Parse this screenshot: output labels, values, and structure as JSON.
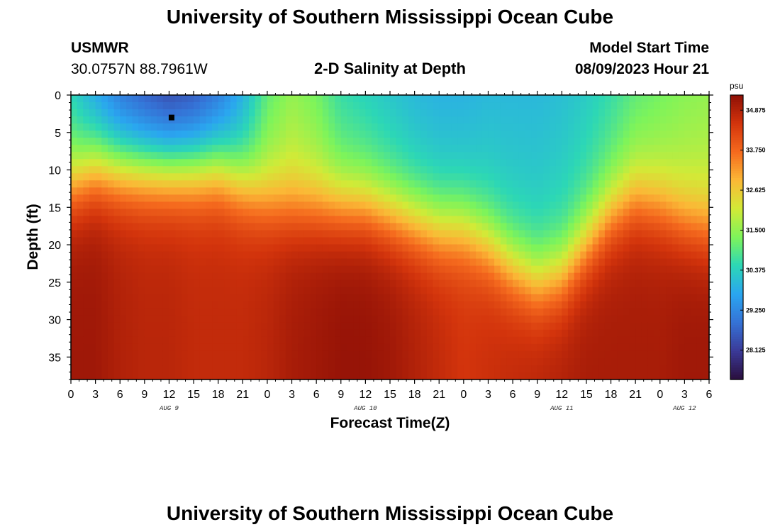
{
  "header": {
    "title": "University of Southern Mississippi Ocean Cube",
    "station": "USMWR",
    "coords": "30.0757N  88.7961W",
    "plot_title": "2-D Salinity at Depth",
    "model_start_label": "Model Start Time",
    "model_start_value": "08/09/2023 Hour 21"
  },
  "footer": {
    "title": "University of Southern Mississippi Ocean Cube"
  },
  "colors": {
    "colormap": [
      "#2a0e3d",
      "#3b3a98",
      "#3572d6",
      "#2aa6f0",
      "#2cd7b6",
      "#7ef45a",
      "#d2ea37",
      "#fbb836",
      "#f56a1e",
      "#d3340c",
      "#8e0f06"
    ]
  },
  "chart_data": {
    "type": "heatmap",
    "title": "2-D Salinity at Depth",
    "xlabel": "Forecast Time(Z)",
    "ylabel": "Depth (ft)",
    "x_hours_range": [
      0,
      78
    ],
    "y_depth_range": [
      0,
      38
    ],
    "x_tick_labels": [
      "0",
      "3",
      "6",
      "9",
      "12",
      "15",
      "18",
      "21",
      "0",
      "3",
      "6",
      "9",
      "12",
      "15",
      "18",
      "21",
      "0",
      "3",
      "6",
      "9",
      "12",
      "15",
      "18",
      "21",
      "0",
      "3",
      "6"
    ],
    "y_tick_labels": [
      "0",
      "5",
      "10",
      "15",
      "20",
      "25",
      "30",
      "35"
    ],
    "y_tick_values": [
      0,
      5,
      10,
      15,
      20,
      25,
      30,
      35
    ],
    "day_labels": [
      {
        "text": "AUG 9",
        "hour": 12
      },
      {
        "text": "AUG 10",
        "hour": 36
      },
      {
        "text": "AUG 11",
        "hour": 60
      },
      {
        "text": "AUG 12",
        "hour": 75
      }
    ],
    "colorbar": {
      "unit": "psu",
      "range": [
        27.3,
        35.3
      ],
      "tick_labels": [
        "34.875",
        "33.750",
        "32.625",
        "31.500",
        "30.375",
        "29.250",
        "28.125"
      ],
      "tick_values": [
        34.875,
        33.75,
        32.625,
        31.5,
        30.375,
        29.25,
        28.125
      ]
    },
    "marker": {
      "hour": 12.3,
      "depth": 3.0
    },
    "profile_columns": [
      {
        "hour": 0,
        "h": 12,
        "surf": 30.4,
        "deep": 35.1
      },
      {
        "hour": 3,
        "h": 10,
        "surf": 29.6,
        "deep": 35.1
      },
      {
        "hour": 6,
        "h": 10,
        "surf": 28.9,
        "deep": 34.9
      },
      {
        "hour": 9,
        "h": 10,
        "surf": 28.5,
        "deep": 34.8
      },
      {
        "hour": 12,
        "h": 10,
        "surf": 28.2,
        "deep": 34.8
      },
      {
        "hour": 15,
        "h": 10,
        "surf": 28.4,
        "deep": 34.7
      },
      {
        "hour": 18,
        "h": 10,
        "surf": 28.9,
        "deep": 34.7
      },
      {
        "hour": 21,
        "h": 12,
        "surf": 29.8,
        "deep": 34.7
      },
      {
        "hour": 24,
        "h": 14,
        "surf": 31.0,
        "deep": 34.8
      },
      {
        "hour": 27,
        "h": 15,
        "surf": 31.5,
        "deep": 35.0
      },
      {
        "hour": 30,
        "h": 15,
        "surf": 31.2,
        "deep": 35.1
      },
      {
        "hour": 33,
        "h": 15,
        "surf": 30.6,
        "deep": 35.2
      },
      {
        "hour": 36,
        "h": 15,
        "surf": 30.4,
        "deep": 35.2
      },
      {
        "hour": 39,
        "h": 16,
        "surf": 30.2,
        "deep": 35.1
      },
      {
        "hour": 42,
        "h": 17,
        "surf": 30.0,
        "deep": 34.9
      },
      {
        "hour": 45,
        "h": 18,
        "surf": 29.9,
        "deep": 34.7
      },
      {
        "hour": 48,
        "h": 18,
        "surf": 29.9,
        "deep": 34.5
      },
      {
        "hour": 51,
        "h": 20,
        "surf": 30.0,
        "deep": 34.6
      },
      {
        "hour": 54,
        "h": 23,
        "surf": 30.0,
        "deep": 34.7
      },
      {
        "hour": 57,
        "h": 25,
        "surf": 30.0,
        "deep": 34.8
      },
      {
        "hour": 60,
        "h": 24,
        "surf": 30.1,
        "deep": 34.9
      },
      {
        "hour": 63,
        "h": 20,
        "surf": 30.3,
        "deep": 35.0
      },
      {
        "hour": 66,
        "h": 16,
        "surf": 30.6,
        "deep": 35.0
      },
      {
        "hour": 69,
        "h": 14,
        "surf": 31.0,
        "deep": 35.0
      },
      {
        "hour": 72,
        "h": 15,
        "surf": 31.2,
        "deep": 35.0
      },
      {
        "hour": 75,
        "h": 17,
        "surf": 31.4,
        "deep": 35.1
      },
      {
        "hour": 78,
        "h": 18,
        "surf": 31.5,
        "deep": 35.1
      }
    ]
  }
}
